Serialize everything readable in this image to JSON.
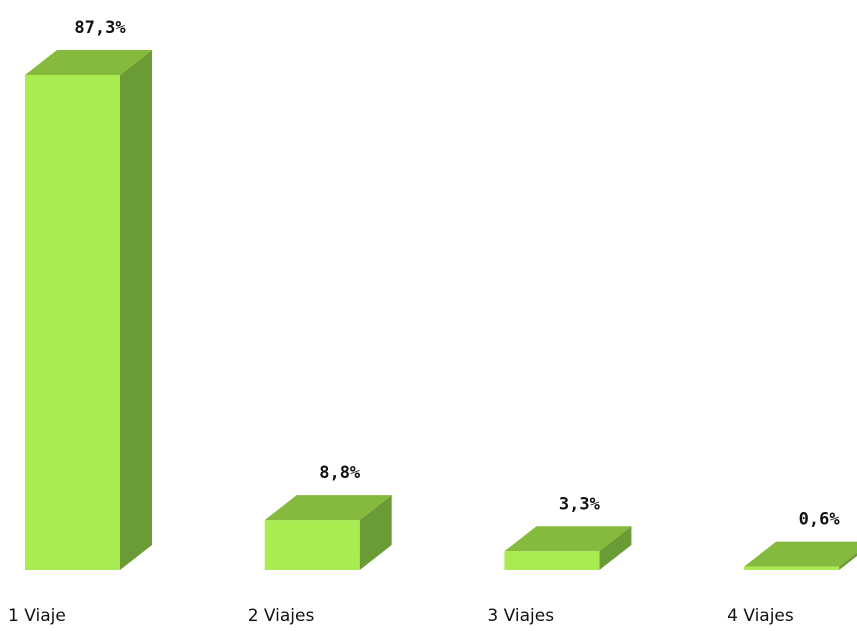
{
  "chart_data": {
    "type": "bar3d",
    "categories": [
      "1 Viaje",
      "2 Viajes",
      "3 Viajes",
      "4 Viajes"
    ],
    "values": [
      87.3,
      8.8,
      3.3,
      0.6
    ],
    "value_labels": [
      "87,3%",
      "8,8%",
      "3,3%",
      "0,6%"
    ],
    "color": "#a8ec52"
  }
}
